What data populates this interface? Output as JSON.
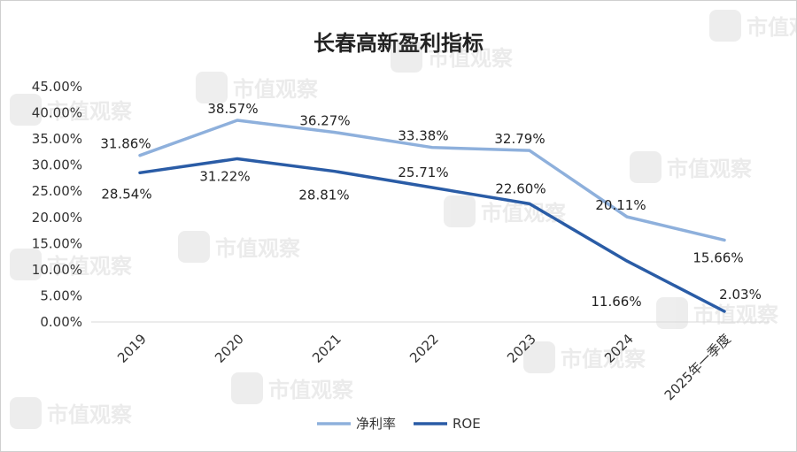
{
  "chart_data": {
    "type": "line",
    "title": "长春高新盈利指标",
    "categories": [
      "2019",
      "2020",
      "2021",
      "2022",
      "2023",
      "2024",
      "2025年一季度"
    ],
    "ylim": [
      0,
      45
    ],
    "yticks": [
      "0.00%",
      "5.00%",
      "10.00%",
      "15.00%",
      "20.00%",
      "25.00%",
      "30.00%",
      "35.00%",
      "40.00%",
      "45.00%"
    ],
    "series": [
      {
        "name": "净利率",
        "color": "#8eb0dc",
        "values": [
          31.86,
          38.57,
          36.27,
          33.38,
          32.79,
          20.11,
          15.66
        ],
        "labels": [
          "31.86%",
          "38.57%",
          "36.27%",
          "33.38%",
          "32.79%",
          "20.11%",
          "15.66%"
        ]
      },
      {
        "name": "ROE",
        "color": "#2a5ca6",
        "values": [
          28.54,
          31.22,
          28.81,
          25.71,
          22.6,
          11.66,
          2.03
        ],
        "labels": [
          "28.54%",
          "31.22%",
          "28.81%",
          "25.71%",
          "22.60%",
          "11.66%",
          "2.03%"
        ]
      }
    ],
    "grid": false,
    "legend": "bottom"
  },
  "watermark": "市值观察"
}
